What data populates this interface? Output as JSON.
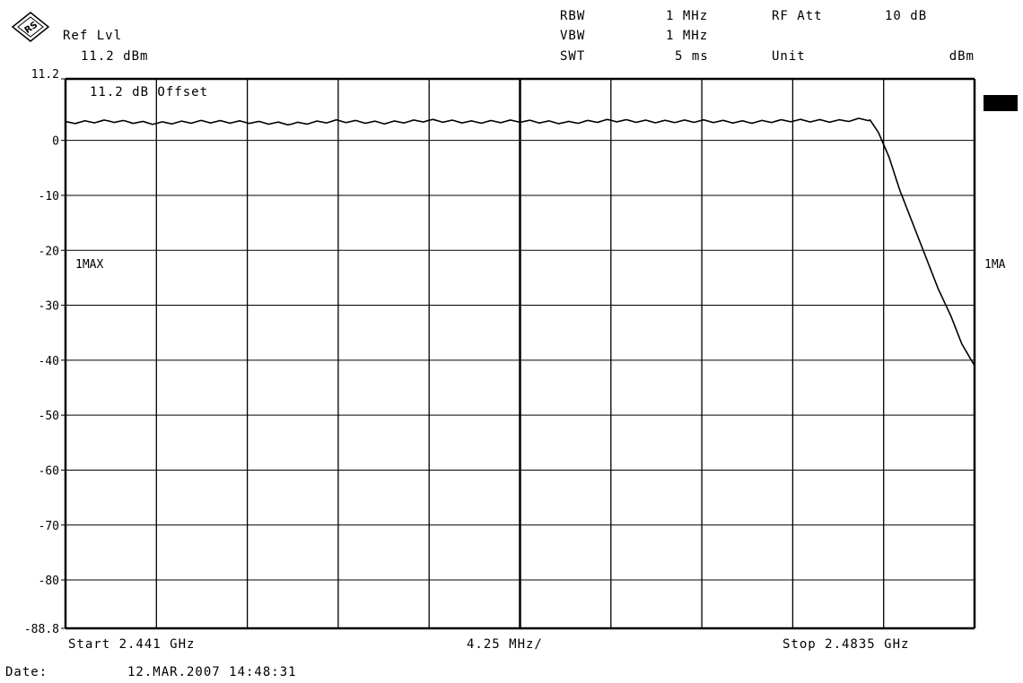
{
  "header": {
    "logo_letters": "RS",
    "ref_lvl_label": "Ref Lvl",
    "ref_lvl_value": "11.2 dBm",
    "rbw_label": "RBW",
    "rbw_value": "1 MHz",
    "vbw_label": "VBW",
    "vbw_value": "1 MHz",
    "swt_label": "SWT",
    "swt_value": "5 ms",
    "rf_att_label": "RF Att",
    "rf_att_value": "10 dB",
    "unit_label": "Unit",
    "unit_value": "dBm"
  },
  "footer": {
    "start": "Start 2.441 GHz",
    "span_per_div": "4.25 MHz/",
    "stop": "Stop 2.4835 GHz",
    "date_label": "Date:",
    "date_value": "12.MAR.2007  14:48:31"
  },
  "chart_data": {
    "type": "line",
    "title": "",
    "xlabel": "",
    "ylabel": "",
    "xlim": [
      2.441,
      2.4835
    ],
    "x_unit": "GHz",
    "ylim": [
      -88.8,
      11.2
    ],
    "y_unit": "dBm",
    "y_ticks": [
      11.2,
      0,
      -10,
      -20,
      -30,
      -40,
      -50,
      -60,
      -70,
      -80,
      -88.8
    ],
    "y_tick_labels": [
      "11.2",
      "0",
      "-10",
      "-20",
      "-30",
      "-40",
      "-50",
      "-60",
      "-70",
      "-80",
      "-88.8"
    ],
    "x_divisions": 10,
    "grid": true,
    "annotations": {
      "offset": "11.2 dB Offset",
      "trace_left": "1MAX",
      "trace_right": "1MA"
    },
    "series": [
      {
        "x": [
          2.441,
          2.4431,
          2.4452,
          2.4474,
          2.4495,
          2.4516,
          2.4537,
          2.4559,
          2.458,
          2.4601,
          2.4622,
          2.4644,
          2.4665,
          2.4686,
          2.4707,
          2.4729,
          2.475,
          2.4771,
          2.4782,
          2.4786,
          2.479,
          2.4795,
          2.48,
          2.4806,
          2.4812,
          2.4818,
          2.4824,
          2.4829,
          2.4835
        ],
        "y": [
          3.2,
          3.5,
          3.1,
          3.4,
          3.3,
          3.0,
          3.5,
          3.2,
          3.6,
          3.3,
          3.5,
          3.2,
          3.6,
          3.4,
          3.5,
          3.3,
          3.6,
          3.5,
          3.8,
          3.8,
          1.5,
          -3.0,
          -9.0,
          -15.0,
          -21.0,
          -27.0,
          -32.0,
          -37.0,
          -41.0
        ]
      }
    ]
  }
}
